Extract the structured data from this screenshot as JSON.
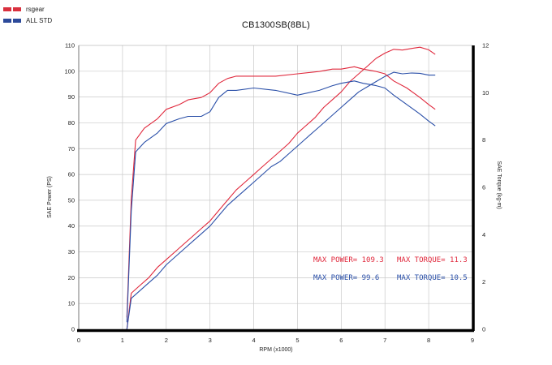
{
  "chart_data": {
    "type": "line",
    "title": "CB1300SB(8BL)",
    "xlabel": "RPM (x1000)",
    "ylabel_left": "SAE Power (PS)",
    "ylabel_right": "SAE Torque (kg-m)",
    "xlim": [
      0,
      9
    ],
    "ylim_left": [
      0,
      110
    ],
    "ylim_right": [
      0,
      12
    ],
    "x_ticks": [
      "0",
      "1",
      "2",
      "3",
      "4",
      "5",
      "6",
      "7",
      "8",
      "9"
    ],
    "y_left_ticks": [
      "0",
      "10",
      "20",
      "30",
      "40",
      "50",
      "60",
      "70",
      "80",
      "90",
      "100",
      "110"
    ],
    "y_right_ticks": [
      "0",
      "2",
      "4",
      "6",
      "8",
      "10",
      "12"
    ],
    "grid": true,
    "legend": [
      {
        "name": "rsgear",
        "color": "#d9303e"
      },
      {
        "name": "ALL STD",
        "color": "#2c4a9a"
      }
    ],
    "annotations": [
      {
        "text": "MAX POWER= 109.3",
        "color": "#e0283c"
      },
      {
        "text": "MAX TORQUE= 11.3",
        "color": "#e0283c"
      },
      {
        "text": "MAX POWER=  99.6",
        "color": "#2a4fa8"
      },
      {
        "text": "MAX TORQUE= 10.5",
        "color": "#2a4fa8"
      }
    ],
    "series": [
      {
        "name": "rsgear",
        "metric": "power",
        "axis": "left",
        "color": "#e0283c",
        "x": [
          1.1,
          1.2,
          1.4,
          1.6,
          1.8,
          2.0,
          2.2,
          2.4,
          2.6,
          2.8,
          3.0,
          3.2,
          3.4,
          3.6,
          3.8,
          4.0,
          4.2,
          4.4,
          4.6,
          4.8,
          5.0,
          5.2,
          5.4,
          5.6,
          5.8,
          6.0,
          6.2,
          6.4,
          6.6,
          6.8,
          7.0,
          7.2,
          7.4,
          7.6,
          7.8,
          8.0,
          8.15
        ],
        "y": [
          0,
          14,
          17,
          20,
          24,
          27,
          30,
          33,
          36,
          39,
          42,
          46,
          50,
          54,
          57,
          60,
          63,
          66,
          69,
          72,
          76,
          79,
          82,
          86,
          89,
          92,
          96,
          99,
          102,
          105,
          107,
          108.5,
          108.2,
          108.8,
          109.3,
          108.3,
          106.5
        ]
      },
      {
        "name": "ALL STD",
        "metric": "power",
        "axis": "left",
        "color": "#2a4fa8",
        "x": [
          1.1,
          1.2,
          1.4,
          1.6,
          1.8,
          2.0,
          2.2,
          2.4,
          2.6,
          2.8,
          3.0,
          3.2,
          3.4,
          3.6,
          3.8,
          4.0,
          4.2,
          4.4,
          4.6,
          4.8,
          5.0,
          5.2,
          5.4,
          5.6,
          5.8,
          6.0,
          6.2,
          6.4,
          6.6,
          6.8,
          7.0,
          7.2,
          7.4,
          7.6,
          7.8,
          8.0,
          8.15
        ],
        "y": [
          0,
          12,
          15,
          18,
          21,
          25,
          28,
          31,
          34,
          37,
          40,
          44,
          48,
          51,
          54,
          57,
          60,
          63,
          65,
          68,
          71,
          74,
          77,
          80,
          83,
          86,
          89,
          92,
          94,
          96,
          98,
          99.6,
          99,
          99.3,
          99.2,
          98.5,
          98.5
        ]
      },
      {
        "name": "rsgear",
        "metric": "torque",
        "axis": "right",
        "color": "#e0283c",
        "x": [
          1.1,
          1.2,
          1.3,
          1.5,
          1.8,
          2.0,
          2.3,
          2.5,
          2.8,
          3.0,
          3.2,
          3.4,
          3.6,
          4.0,
          4.5,
          5.0,
          5.5,
          5.8,
          6.0,
          6.3,
          6.5,
          6.8,
          7.0,
          7.2,
          7.5,
          7.8,
          8.0,
          8.15
        ],
        "y": [
          0.5,
          5.5,
          8.0,
          8.5,
          8.9,
          9.3,
          9.5,
          9.7,
          9.8,
          10.0,
          10.4,
          10.6,
          10.7,
          10.7,
          10.7,
          10.8,
          10.9,
          11.0,
          11.0,
          11.1,
          11.0,
          10.9,
          10.8,
          10.5,
          10.2,
          9.8,
          9.5,
          9.3
        ]
      },
      {
        "name": "ALL STD",
        "metric": "torque",
        "axis": "right",
        "color": "#2a4fa8",
        "x": [
          1.1,
          1.2,
          1.3,
          1.5,
          1.8,
          2.0,
          2.3,
          2.5,
          2.8,
          3.0,
          3.2,
          3.4,
          3.6,
          4.0,
          4.5,
          5.0,
          5.5,
          5.8,
          6.0,
          6.3,
          6.5,
          6.8,
          7.0,
          7.2,
          7.5,
          7.8,
          8.0,
          8.15
        ],
        "y": [
          0.3,
          5.0,
          7.5,
          7.9,
          8.3,
          8.7,
          8.9,
          9.0,
          9.0,
          9.2,
          9.8,
          10.1,
          10.1,
          10.2,
          10.1,
          9.9,
          10.1,
          10.3,
          10.4,
          10.5,
          10.4,
          10.3,
          10.2,
          9.9,
          9.5,
          9.1,
          8.8,
          8.6
        ]
      }
    ]
  }
}
